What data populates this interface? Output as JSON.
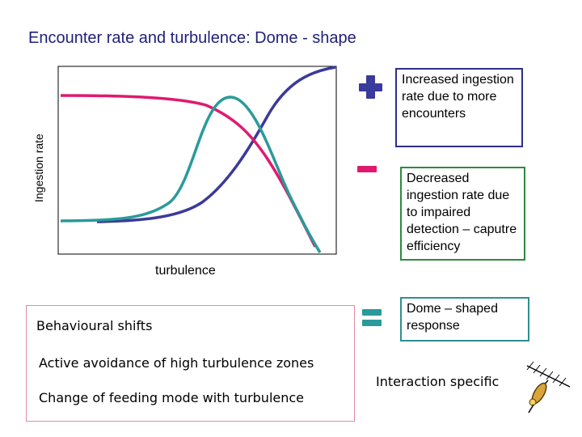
{
  "title": "Encounter rate and turbulence: Dome - shape",
  "chart": {
    "ylabel": "Ingestion rate",
    "xlabel": "turbulence",
    "colors": {
      "encounter": "#3a3a9a",
      "detection": "#e0196e",
      "dome": "#2a9a9a"
    }
  },
  "legend": {
    "plus": {
      "icon": "plus-icon",
      "color": "#3a3a9a",
      "text": "Increased ingestion rate due to more encounters"
    },
    "minus": {
      "icon": "minus-icon",
      "color": "#e0196e",
      "text": "Decreased ingestion rate due to impaired detection – caputre efficiency"
    },
    "dome": {
      "icon": "equals-icon",
      "color": "#2a9a9a",
      "text": "Dome – shaped response"
    }
  },
  "behaviour": {
    "title": "Behavioural shifts",
    "items": [
      "Active avoidance of high turbulence zones",
      "Change of feeding mode with turbulence"
    ]
  },
  "interaction": "Interaction specific",
  "decor_icon": "copepod-icon"
}
